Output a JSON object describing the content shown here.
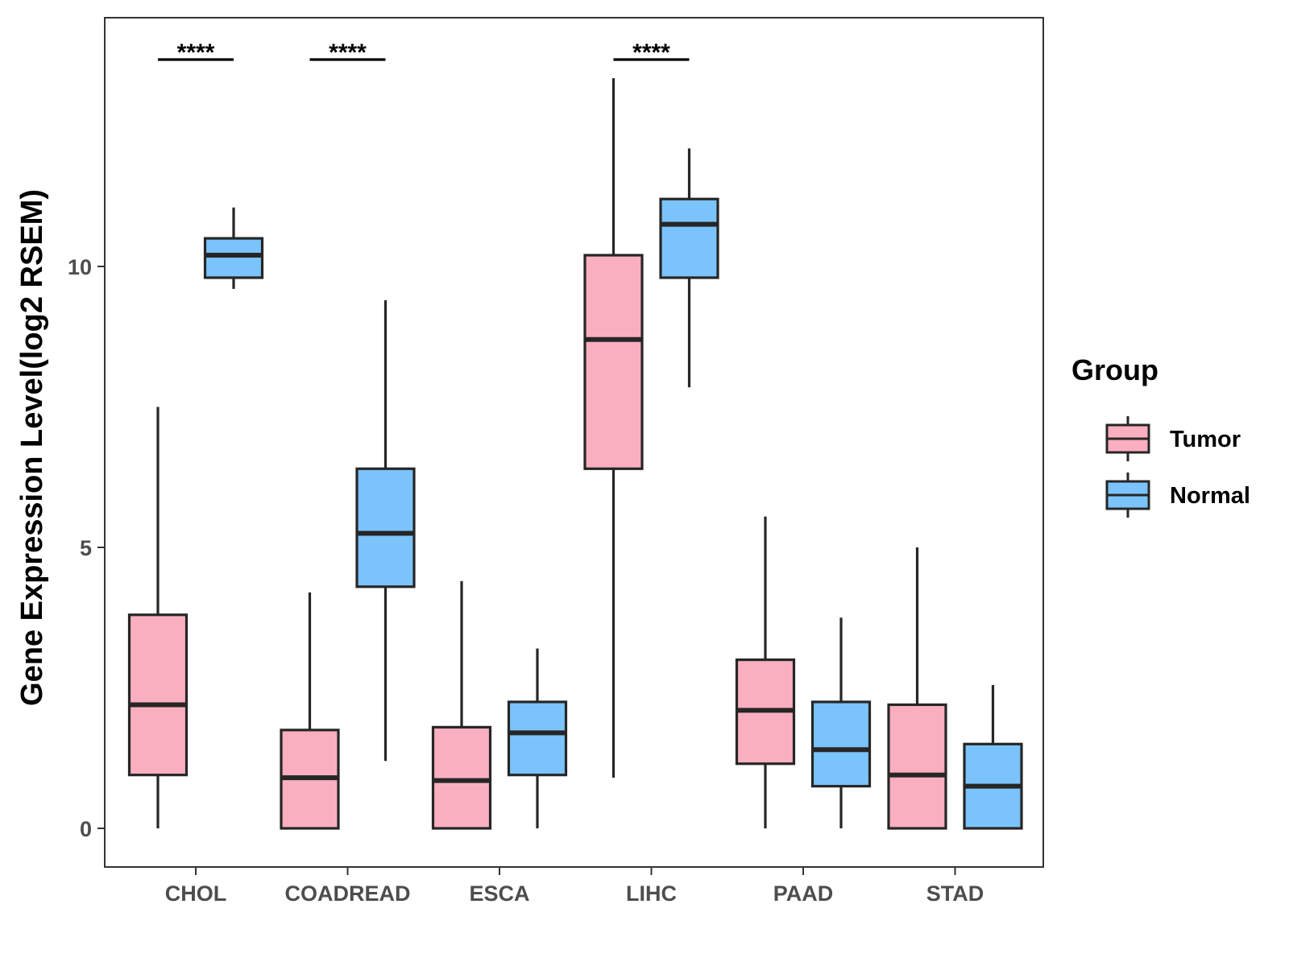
{
  "chart_data": {
    "type": "boxplot",
    "title": "",
    "xlabel": "",
    "ylabel": "Gene Expression Level(log2 RSEM)",
    "ylim": [
      -0.7,
      14.4
    ],
    "yticks": [
      0,
      5,
      10
    ],
    "categories": [
      "CHOL",
      "COADREAD",
      "ESCA",
      "LIHC",
      "PAAD",
      "STAD"
    ],
    "legend": {
      "title": "Group",
      "position": "right",
      "items": [
        "Tumor",
        "Normal"
      ]
    },
    "series": [
      {
        "name": "Tumor",
        "color": "#FAAFC0",
        "boxes": [
          {
            "category": "CHOL",
            "min": 0.0,
            "q1": 0.95,
            "median": 2.2,
            "q3": 3.8,
            "max": 7.5
          },
          {
            "category": "COADREAD",
            "min": 0.0,
            "q1": 0.0,
            "median": 0.9,
            "q3": 1.75,
            "max": 4.2
          },
          {
            "category": "ESCA",
            "min": 0.0,
            "q1": 0.0,
            "median": 0.85,
            "q3": 1.8,
            "max": 4.4
          },
          {
            "category": "LIHC",
            "min": 0.9,
            "q1": 6.4,
            "median": 8.7,
            "q3": 10.2,
            "max": 13.35
          },
          {
            "category": "PAAD",
            "min": 0.0,
            "q1": 1.15,
            "median": 2.1,
            "q3": 3.0,
            "max": 5.55
          },
          {
            "category": "STAD",
            "min": 0.0,
            "q1": 0.0,
            "median": 0.95,
            "q3": 2.2,
            "max": 5.0
          }
        ]
      },
      {
        "name": "Normal",
        "color": "#7BC4FB",
        "boxes": [
          {
            "category": "CHOL",
            "min": 9.6,
            "q1": 9.8,
            "median": 10.2,
            "q3": 10.5,
            "max": 11.05
          },
          {
            "category": "COADREAD",
            "min": 1.2,
            "q1": 4.3,
            "median": 5.25,
            "q3": 6.4,
            "max": 9.4
          },
          {
            "category": "ESCA",
            "min": 0.0,
            "q1": 0.95,
            "median": 1.7,
            "q3": 2.25,
            "max": 3.2
          },
          {
            "category": "LIHC",
            "min": 7.85,
            "q1": 9.8,
            "median": 10.75,
            "q3": 11.2,
            "max": 12.1
          },
          {
            "category": "PAAD",
            "min": 0.0,
            "q1": 0.75,
            "median": 1.4,
            "q3": 2.25,
            "max": 3.75
          },
          {
            "category": "STAD",
            "min": 0.0,
            "q1": 0.0,
            "median": 0.75,
            "q3": 1.5,
            "max": 2.55
          }
        ]
      }
    ],
    "annotations": [
      {
        "category": "CHOL",
        "text": "****"
      },
      {
        "category": "COADREAD",
        "text": "****"
      },
      {
        "category": "LIHC",
        "text": "****"
      }
    ]
  }
}
